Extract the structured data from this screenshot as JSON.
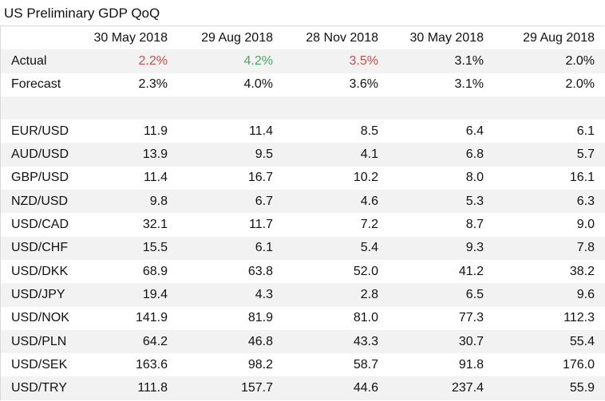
{
  "title": "US Preliminary GDP QoQ",
  "columns": [
    "30 May 2018",
    "29 Aug 2018",
    "28 Nov 2018",
    "30 May 2018",
    "29 Aug 2018"
  ],
  "colors": {
    "red": "#c0504d",
    "green": "#4aa564",
    "shade": "#f2f2f2"
  },
  "actual": {
    "label": "Actual",
    "values": [
      "2.2%",
      "4.2%",
      "3.5%",
      "3.1%",
      "2.0%"
    ],
    "value_colors": [
      "red",
      "green",
      "red",
      "default",
      "default"
    ]
  },
  "forecast": {
    "label": "Forecast",
    "values": [
      "2.3%",
      "4.0%",
      "3.6%",
      "3.1%",
      "2.0%"
    ]
  },
  "pairs": [
    {
      "label": "EUR/USD",
      "values": [
        "11.9",
        "11.4",
        "8.5",
        "6.4",
        "6.1"
      ]
    },
    {
      "label": "AUD/USD",
      "values": [
        "13.9",
        "9.5",
        "4.1",
        "6.8",
        "5.7"
      ]
    },
    {
      "label": "GBP/USD",
      "values": [
        "11.4",
        "16.7",
        "10.2",
        "8.0",
        "16.1"
      ]
    },
    {
      "label": "NZD/USD",
      "values": [
        "9.8",
        "6.7",
        "4.6",
        "5.3",
        "6.3"
      ]
    },
    {
      "label": "USD/CAD",
      "values": [
        "32.1",
        "11.7",
        "7.2",
        "8.7",
        "9.0"
      ]
    },
    {
      "label": "USD/CHF",
      "values": [
        "15.5",
        "6.1",
        "5.4",
        "9.3",
        "7.8"
      ]
    },
    {
      "label": "USD/DKK",
      "values": [
        "68.9",
        "63.8",
        "52.0",
        "41.2",
        "38.2"
      ]
    },
    {
      "label": "USD/JPY",
      "values": [
        "19.4",
        "4.3",
        "2.8",
        "6.5",
        "9.6"
      ]
    },
    {
      "label": "USD/NOK",
      "values": [
        "141.9",
        "81.9",
        "81.0",
        "77.3",
        "112.3"
      ]
    },
    {
      "label": "USD/PLN",
      "values": [
        "64.2",
        "46.8",
        "43.3",
        "30.7",
        "55.4"
      ]
    },
    {
      "label": "USD/SEK",
      "values": [
        "163.6",
        "98.2",
        "58.7",
        "91.8",
        "176.0"
      ]
    },
    {
      "label": "USD/TRY",
      "values": [
        "111.8",
        "157.7",
        "44.6",
        "237.4",
        "55.9"
      ]
    }
  ]
}
